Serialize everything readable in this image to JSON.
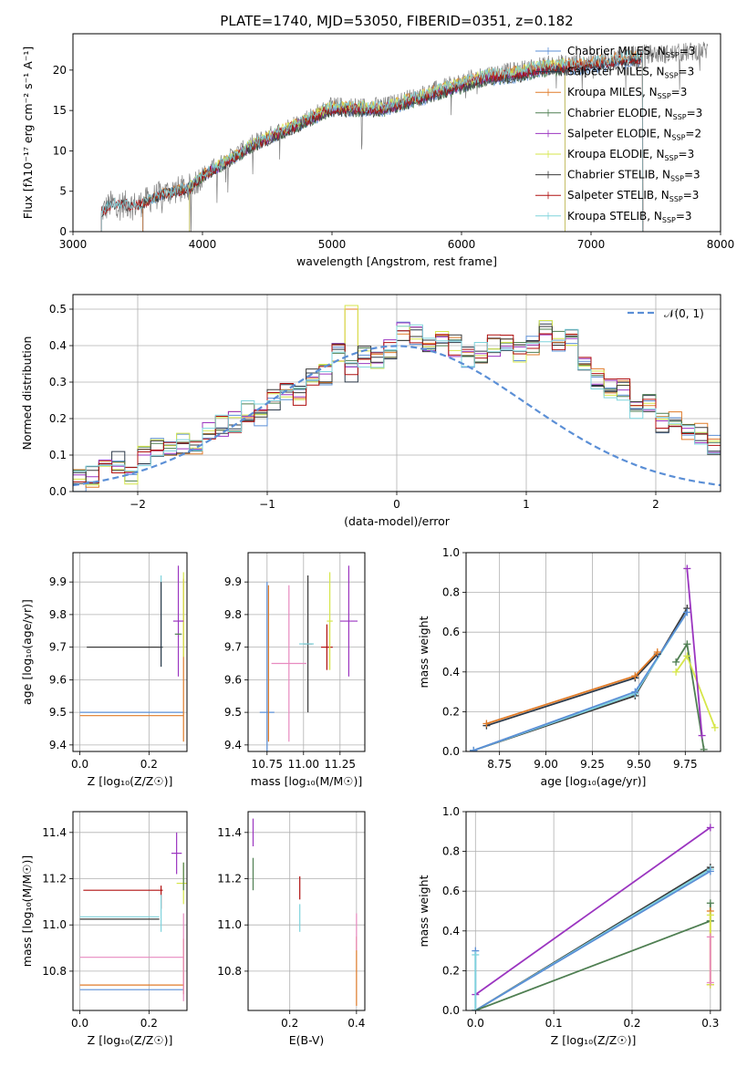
{
  "colors": {
    "chabrier_miles": "#5b8fd6",
    "salpeter_miles": "#2b3848",
    "kroupa_miles": "#e07b28",
    "chabrier_elodie": "#4f7f52",
    "salpeter_elodie": "#9b35c0",
    "kroupa_elodie": "#d6e64a",
    "chabrier_stelib": "#3a3a3a",
    "salpeter_stelib": "#b01010",
    "kroupa_stelib": "#7fd3dc",
    "gauss": "#5b8fd6",
    "pink": "#e88ac0",
    "gray": "#808080"
  },
  "chart_data": [
    {
      "id": "spectrum",
      "type": "line",
      "title": "PLATE=1740, MJD=53050, FIBERID=0351, z=0.182",
      "xlabel": "wavelength [Angstrom, rest frame]",
      "ylabel": "Flux [fλ10⁻¹⁷ erg cm⁻² s⁻¹ A⁻¹]",
      "xlim": [
        3000,
        8000
      ],
      "ylim": [
        0,
        24.5
      ],
      "xticks": [
        "3000",
        "4000",
        "5000",
        "6000",
        "7000",
        "8000"
      ],
      "yticks": [
        "0",
        "5",
        "10",
        "15",
        "20"
      ],
      "legend": [
        "Chabrier MILES, NSSP=3",
        "Salpeter MILES, NSSP=3",
        "Kroupa MILES, NSSP=3",
        "Chabrier ELODIE, NSSP=3",
        "Salpeter ELODIE, NSSP=2",
        "Kroupa ELODIE, NSSP=3",
        "Chabrier STELIB, NSSP=3",
        "Salpeter STELIB, NSSP=3",
        "Kroupa STELIB, NSSP=3"
      ],
      "legend_loc": "top-right",
      "grid": false,
      "data_envelope": {
        "x": [
          3220,
          3300,
          3500,
          3700,
          3900,
          4000,
          4200,
          4400,
          4600,
          4800,
          5000,
          5200,
          5400,
          5600,
          5800,
          6000,
          6200,
          6400,
          6600,
          6800,
          7000,
          7200,
          7400,
          7600,
          7900
        ],
        "y": [
          2.5,
          3.5,
          3.3,
          4.8,
          5.5,
          7.0,
          9.0,
          11.0,
          12.5,
          14.0,
          15.5,
          15.5,
          15.5,
          16.5,
          17.5,
          18.5,
          19.5,
          19.8,
          20.5,
          20.8,
          21.0,
          21.5,
          22.0,
          22.0,
          22.5
        ]
      },
      "model_end": {
        "MILES": 7400,
        "ELODIE": 6800,
        "STELIB": 7400
      }
    },
    {
      "id": "residuals",
      "type": "line",
      "xlabel": "(data-model)/error",
      "ylabel": "Normed distribution",
      "xlim": [
        -2.5,
        2.5
      ],
      "ylim": [
        0,
        0.54
      ],
      "xticks": [
        "−2",
        "−1",
        "0",
        "1",
        "2"
      ],
      "yticks": [
        "0.0",
        "0.1",
        "0.2",
        "0.3",
        "0.4",
        "0.5"
      ],
      "legend": [
        "𝒩(0, 1)"
      ],
      "legend_loc": "top-right",
      "grid": true,
      "bin_width": 0.1,
      "x_start": -2.5,
      "base_hist": [
        0.03,
        0.04,
        0.06,
        0.08,
        0.05,
        0.1,
        0.12,
        0.12,
        0.13,
        0.13,
        0.16,
        0.18,
        0.19,
        0.22,
        0.21,
        0.25,
        0.27,
        0.26,
        0.32,
        0.32,
        0.38,
        0.33,
        0.37,
        0.36,
        0.39,
        0.44,
        0.43,
        0.4,
        0.41,
        0.4,
        0.37,
        0.38,
        0.4,
        0.41,
        0.38,
        0.4,
        0.44,
        0.41,
        0.42,
        0.34,
        0.31,
        0.28,
        0.28,
        0.23,
        0.24,
        0.19,
        0.2,
        0.16,
        0.16,
        0.13,
        0.12,
        0.11,
        0.09,
        0.08,
        0.07,
        0.06,
        0.05,
        0.04,
        0.04,
        0.03,
        0.03,
        0.03,
        0.02,
        0.02,
        0.02,
        0.02,
        0.01,
        0.01,
        0.01,
        0.01,
        0.01,
        0.01,
        0.01,
        0.01,
        0.01,
        0.01,
        0.01,
        0.01,
        0.01,
        0.01,
        0.01,
        0.01,
        0.01,
        0.01,
        0.01,
        0.01,
        0.01,
        0.01,
        0.01,
        0.01,
        0.01,
        0.01,
        0.01,
        0.01,
        0.01,
        0.01,
        0.01,
        0.01,
        0.01,
        0.01
      ]
    },
    {
      "id": "age_vs_z",
      "type": "scatter",
      "xlabel": "Z [log₁₀(Z/Z☉)]",
      "ylabel": "age  [log₁₀(age/yr)]",
      "xlim": [
        -0.02,
        0.31
      ],
      "ylim": [
        9.38,
        9.99
      ],
      "xticks": [
        {
          "v": 0.0,
          "t": "0.0"
        },
        {
          "v": 0.2,
          "t": "0.2"
        }
      ],
      "yticks": [
        {
          "v": 9.4,
          "t": "9.4"
        },
        {
          "v": 9.5,
          "t": "9.5"
        },
        {
          "v": 9.6,
          "t": "9.6"
        },
        {
          "v": 9.7,
          "t": "9.7"
        },
        {
          "v": 9.8,
          "t": "9.8"
        },
        {
          "v": 9.9,
          "t": "9.9"
        }
      ],
      "grid": true,
      "points": [
        {
          "c": "chabrier_miles",
          "x": 0.15,
          "xe": 0.15,
          "y": 9.5,
          "ye": 0.0
        },
        {
          "c": "kroupa_miles",
          "x": 0.15,
          "xe": 0.15,
          "y": 9.49,
          "ye": 0.0
        },
        {
          "c": "kroupa_miles",
          "x": 0.3,
          "xe": 0.0,
          "y": 9.66,
          "ye": 0.25
        },
        {
          "c": "chabrier_stelib",
          "x": 0.13,
          "xe": 0.11,
          "y": 9.7,
          "ye": 0.0
        },
        {
          "c": "kroupa_stelib",
          "x": 0.235,
          "xe": 0.0,
          "y": 9.78,
          "ye": 0.14
        },
        {
          "c": "salpeter_miles",
          "x": 0.235,
          "xe": 0.0,
          "y": 9.77,
          "ye": 0.13
        },
        {
          "c": "kroupa_elodie",
          "x": 0.3,
          "xe": 0.0,
          "y": 9.8,
          "ye": 0.13
        },
        {
          "c": "salpeter_elodie",
          "x": 0.285,
          "xe": 0.015,
          "y": 9.78,
          "ye": 0.17
        },
        {
          "c": "chabrier_elodie",
          "x": 0.285,
          "xe": 0.01,
          "y": 9.74,
          "ye": 0.0
        }
      ]
    },
    {
      "id": "age_vs_mass",
      "type": "scatter",
      "xlabel": "mass [log₁₀(M/M☉)]",
      "ylabel": "",
      "xlim": [
        10.62,
        11.42
      ],
      "ylim": [
        9.38,
        9.99
      ],
      "xticks": [
        {
          "v": 10.75,
          "t": "10.75"
        },
        {
          "v": 11.0,
          "t": "11.00"
        },
        {
          "v": 11.25,
          "t": "11.25"
        }
      ],
      "yticks": [
        {
          "v": 9.4,
          "t": "9.4"
        },
        {
          "v": 9.5,
          "t": "9.5"
        },
        {
          "v": 9.6,
          "t": "9.6"
        },
        {
          "v": 9.7,
          "t": "9.7"
        },
        {
          "v": 9.8,
          "t": "9.8"
        },
        {
          "v": 9.9,
          "t": "9.9"
        }
      ],
      "grid": true,
      "points": [
        {
          "c": "chabrier_miles",
          "x": 10.75,
          "xe": 0.05,
          "y": 9.5,
          "ye": 0.4
        },
        {
          "c": "kroupa_miles",
          "x": 10.76,
          "xe": 0.0,
          "y": 9.65,
          "ye": 0.24
        },
        {
          "c": "pink",
          "x": 10.9,
          "xe": 0.12,
          "y": 9.65,
          "ye": 0.24
        },
        {
          "c": "chabrier_stelib",
          "x": 11.03,
          "xe": 0.03,
          "y": 9.71,
          "ye": 0.21
        },
        {
          "c": "kroupa_stelib",
          "x": 11.02,
          "xe": 0.05,
          "y": 9.71,
          "ye": 0.0
        },
        {
          "c": "salpeter_stelib",
          "x": 11.16,
          "xe": 0.04,
          "y": 9.7,
          "ye": 0.07
        },
        {
          "c": "kroupa_elodie",
          "x": 11.18,
          "xe": 0.02,
          "y": 9.78,
          "ye": 0.15
        },
        {
          "c": "salpeter_elodie",
          "x": 11.31,
          "xe": 0.06,
          "y": 9.78,
          "ye": 0.17
        }
      ]
    },
    {
      "id": "weight_vs_age",
      "type": "line",
      "xlabel": "age  [log₁₀(age/yr)]",
      "ylabel": "mass weight",
      "xlim": [
        8.57,
        9.94
      ],
      "ylim": [
        0,
        1.0
      ],
      "xticks": [
        {
          "v": 8.75,
          "t": "8.75"
        },
        {
          "v": 9.0,
          "t": "9.00"
        },
        {
          "v": 9.25,
          "t": "9.25"
        },
        {
          "v": 9.5,
          "t": "9.50"
        },
        {
          "v": 9.75,
          "t": "9.75"
        }
      ],
      "yticks": [
        {
          "v": 0,
          "t": "0.0"
        },
        {
          "v": 0.2,
          "t": "0.2"
        },
        {
          "v": 0.4,
          "t": "0.4"
        },
        {
          "v": 0.6,
          "t": "0.6"
        },
        {
          "v": 0.8,
          "t": "0.8"
        },
        {
          "v": 1.0,
          "t": "1.0"
        }
      ],
      "grid": true,
      "series": [
        {
          "c": "chabrier_stelib",
          "x": [
            8.61,
            9.48,
            9.76
          ],
          "y": [
            0.005,
            0.28,
            0.72
          ]
        },
        {
          "c": "kroupa_stelib",
          "x": [
            8.61,
            9.48,
            9.76
          ],
          "y": [
            0.005,
            0.29,
            0.7
          ]
        },
        {
          "c": "chabrier_miles",
          "x": [
            8.61,
            9.48,
            9.76
          ],
          "y": [
            0.005,
            0.3,
            0.7
          ]
        },
        {
          "c": "salpeter_miles",
          "x": [
            8.68,
            9.48,
            9.6
          ],
          "y": [
            0.13,
            0.37,
            0.49
          ]
        },
        {
          "c": "kroupa_miles",
          "x": [
            8.68,
            9.48,
            9.6
          ],
          "y": [
            0.14,
            0.38,
            0.5
          ]
        },
        {
          "c": "chabrier_elodie",
          "x": [
            9.7,
            9.76,
            9.85
          ],
          "y": [
            0.45,
            0.54,
            0.01
          ]
        },
        {
          "c": "kroupa_elodie",
          "x": [
            9.7,
            9.76,
            9.91
          ],
          "y": [
            0.4,
            0.48,
            0.12
          ]
        },
        {
          "c": "salpeter_elodie",
          "x": [
            9.76,
            9.84
          ],
          "y": [
            0.92,
            0.08
          ]
        }
      ]
    },
    {
      "id": "mass_vs_z",
      "type": "scatter",
      "xlabel": "Z [log₁₀(Z/Z☉)]",
      "ylabel": "mass [log₁₀(M/M☉)]",
      "xlim": [
        -0.02,
        0.31
      ],
      "ylim": [
        10.63,
        11.49
      ],
      "xticks": [
        {
          "v": 0.0,
          "t": "0.0"
        },
        {
          "v": 0.2,
          "t": "0.2"
        }
      ],
      "yticks": [
        {
          "v": 10.8,
          "t": "10.8"
        },
        {
          "v": 11.0,
          "t": "11.0"
        },
        {
          "v": 11.2,
          "t": "11.2"
        },
        {
          "v": 11.4,
          "t": "11.4"
        }
      ],
      "grid": true,
      "points": [
        {
          "c": "chabrier_miles",
          "x": 0.15,
          "xe": 0.15,
          "y": 10.72,
          "ye": 0.0
        },
        {
          "c": "kroupa_miles",
          "x": 0.15,
          "xe": 0.15,
          "y": 10.74,
          "ye": 0.0
        },
        {
          "c": "kroupa_miles",
          "x": 0.3,
          "xe": 0.0,
          "y": 10.82,
          "ye": 0.12
        },
        {
          "c": "pink",
          "x": 0.15,
          "xe": 0.15,
          "y": 10.86,
          "ye": 0.0
        },
        {
          "c": "pink",
          "x": 0.3,
          "xe": 0.0,
          "y": 10.86,
          "ye": 0.19
        },
        {
          "c": "chabrier_stelib",
          "x": 0.115,
          "xe": 0.115,
          "y": 11.025,
          "ye": 0.0
        },
        {
          "c": "kroupa_stelib",
          "x": 0.115,
          "xe": 0.115,
          "y": 11.035,
          "ye": 0.0
        },
        {
          "c": "salpeter_stelib",
          "x": 0.125,
          "xe": 0.115,
          "y": 11.15,
          "ye": 0.0
        },
        {
          "c": "salpeter_stelib",
          "x": 0.235,
          "xe": 0.0,
          "y": 11.12,
          "ye": 0.05
        },
        {
          "c": "kroupa_stelib",
          "x": 0.235,
          "xe": 0.0,
          "y": 11.05,
          "ye": 0.08
        },
        {
          "c": "salpeter_elodie",
          "x": 0.28,
          "xe": 0.015,
          "y": 11.31,
          "ye": 0.09
        },
        {
          "c": "kroupa_elodie",
          "x": 0.3,
          "xe": 0.02,
          "y": 11.18,
          "ye": 0.09
        },
        {
          "c": "chabrier_elodie",
          "x": 0.3,
          "xe": 0.0,
          "y": 11.21,
          "ye": 0.06
        }
      ]
    },
    {
      "id": "mass_vs_ebv",
      "type": "scatter",
      "xlabel": "E(B-V)",
      "ylabel": "",
      "xlim": [
        0.075,
        0.425
      ],
      "ylim": [
        10.63,
        11.49
      ],
      "xticks": [
        {
          "v": 0.2,
          "t": "0.2"
        },
        {
          "v": 0.4,
          "t": "0.4"
        }
      ],
      "yticks": [
        {
          "v": 10.8,
          "t": "10.8"
        },
        {
          "v": 11.0,
          "t": "11.0"
        },
        {
          "v": 11.2,
          "t": "11.2"
        },
        {
          "v": 11.4,
          "t": "11.4"
        }
      ],
      "grid": true,
      "points": [
        {
          "c": "salpeter_elodie",
          "x": 0.09,
          "xe": 0.0,
          "y": 11.4,
          "ye": 0.06
        },
        {
          "c": "chabrier_elodie",
          "x": 0.09,
          "xe": 0.0,
          "y": 11.22,
          "ye": 0.07
        },
        {
          "c": "salpeter_stelib",
          "x": 0.23,
          "xe": 0.0,
          "y": 11.16,
          "ye": 0.05
        },
        {
          "c": "kroupa_stelib",
          "x": 0.23,
          "xe": 0.0,
          "y": 11.03,
          "ye": 0.06
        },
        {
          "c": "kroupa_miles",
          "x": 0.4,
          "xe": 0.0,
          "y": 10.8,
          "ye": 0.15
        },
        {
          "c": "pink",
          "x": 0.4,
          "xe": 0.0,
          "y": 10.97,
          "ye": 0.08
        }
      ]
    },
    {
      "id": "weight_vs_z",
      "type": "line",
      "xlabel": "Z [log₁₀(Z/Z☉)]",
      "ylabel": "mass weight",
      "xlim": [
        -0.012,
        0.313
      ],
      "ylim": [
        0,
        1.0
      ],
      "xticks": [
        {
          "v": 0.0,
          "t": "0.0"
        },
        {
          "v": 0.1,
          "t": "0.1"
        },
        {
          "v": 0.2,
          "t": "0.2"
        },
        {
          "v": 0.3,
          "t": "0.3"
        }
      ],
      "yticks": [
        {
          "v": 0,
          "t": "0.0"
        },
        {
          "v": 0.2,
          "t": "0.2"
        },
        {
          "v": 0.4,
          "t": "0.4"
        },
        {
          "v": 0.6,
          "t": "0.6"
        },
        {
          "v": 0.8,
          "t": "0.8"
        },
        {
          "v": 1.0,
          "t": "1.0"
        }
      ],
      "grid": true,
      "series": [
        {
          "c": "salpeter_elodie",
          "x": [
            0.0,
            0.3
          ],
          "y": [
            0.08,
            0.92
          ]
        },
        {
          "c": "chabrier_stelib",
          "x": [
            0.0,
            0.3
          ],
          "y": [
            0.0,
            0.72
          ]
        },
        {
          "c": "kroupa_stelib",
          "x": [
            0.0,
            0.3
          ],
          "y": [
            0.0,
            0.71
          ]
        },
        {
          "c": "chabrier_miles",
          "x": [
            0.0,
            0.3
          ],
          "y": [
            0.0,
            0.7
          ]
        },
        {
          "c": "chabrier_elodie",
          "x": [
            0.0,
            0.3
          ],
          "y": [
            0.0,
            0.45
          ]
        },
        {
          "c": "chabrier_miles",
          "x": [
            0.0,
            0.0
          ],
          "y": [
            0.0,
            0.3
          ]
        },
        {
          "c": "kroupa_stelib",
          "x": [
            0.0,
            0.0
          ],
          "y": [
            0.0,
            0.28
          ]
        },
        {
          "c": "chabrier_elodie",
          "x": [
            0.3,
            0.3
          ],
          "y": [
            0.45,
            0.54
          ]
        },
        {
          "c": "kroupa_miles",
          "x": [
            0.3,
            0.3
          ],
          "y": [
            0.13,
            0.5
          ]
        },
        {
          "c": "kroupa_elodie",
          "x": [
            0.3,
            0.3
          ],
          "y": [
            0.13,
            0.48
          ]
        },
        {
          "c": "pink",
          "x": [
            0.3,
            0.3
          ],
          "y": [
            0.14,
            0.37
          ]
        }
      ]
    }
  ]
}
